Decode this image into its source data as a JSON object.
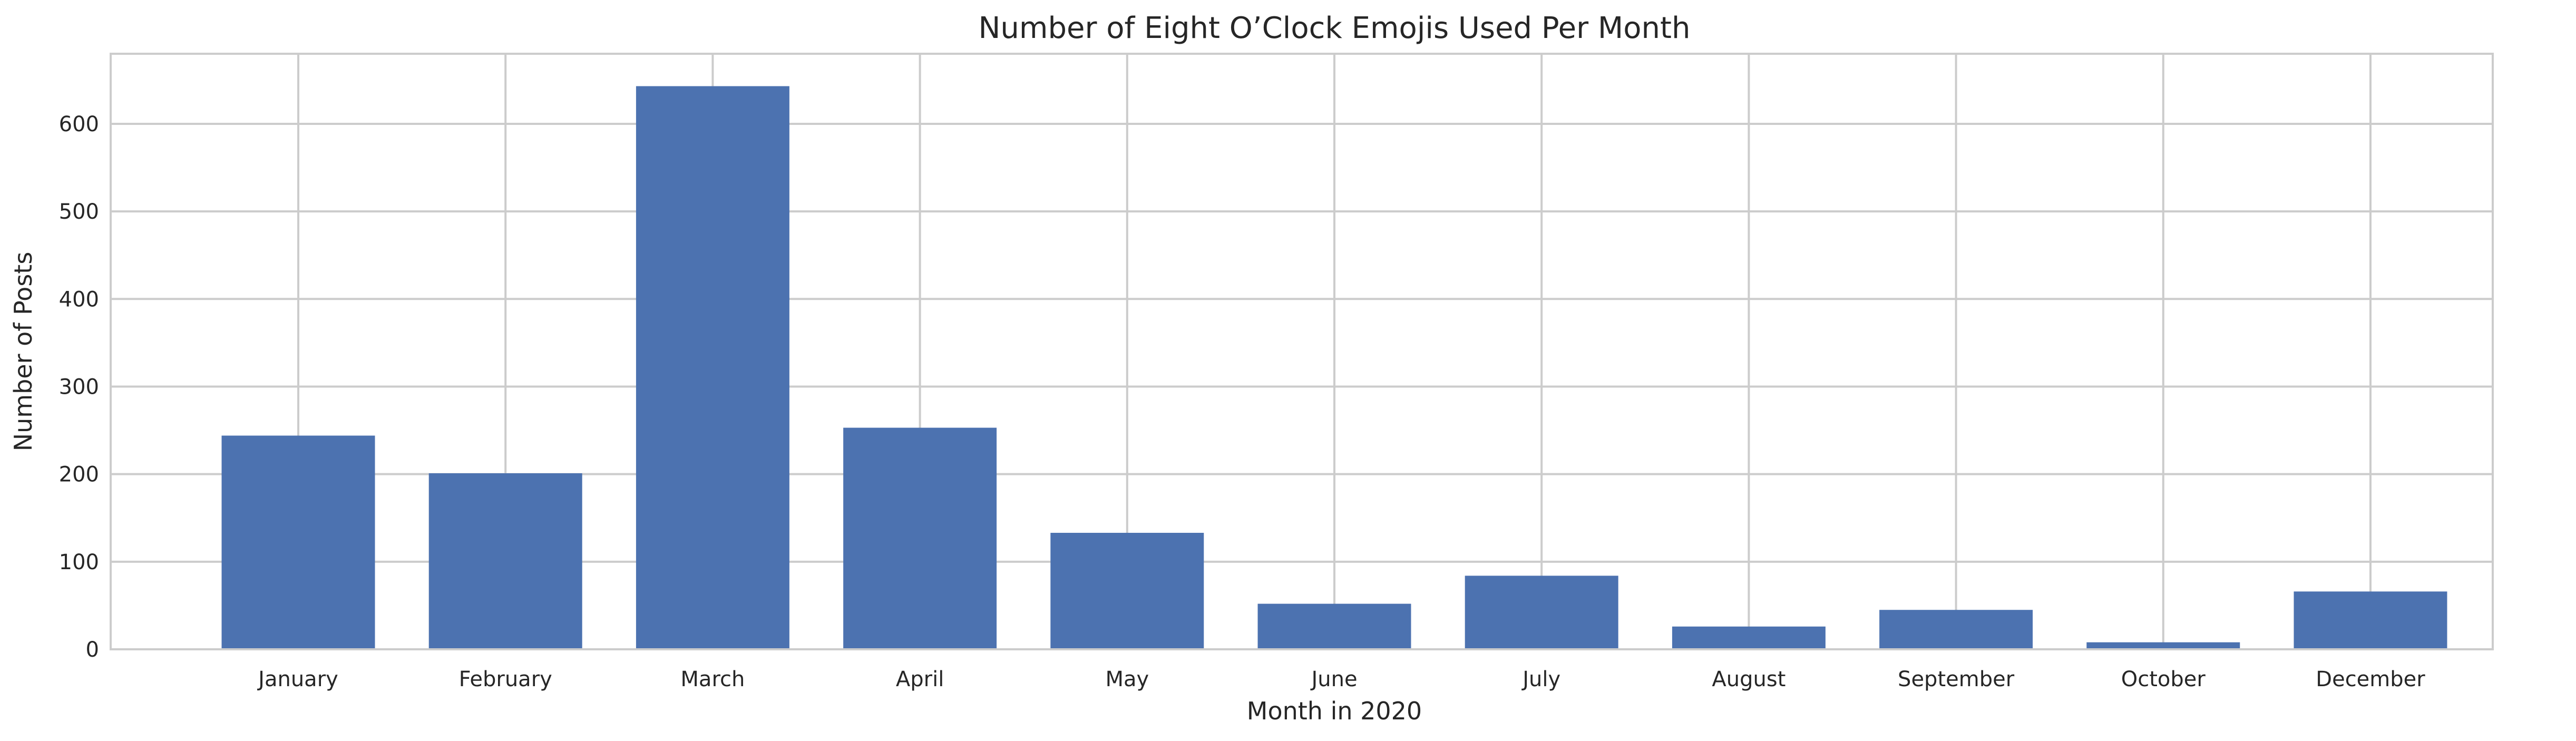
{
  "chart_data": {
    "type": "bar",
    "title": "Number of Eight O’Clock Emojis Used Per Month",
    "xlabel": "Month in 2020",
    "ylabel": "Number of Posts",
    "categories": [
      "January",
      "February",
      "March",
      "April",
      "May",
      "June",
      "July",
      "August",
      "September",
      "October",
      "December"
    ],
    "values": [
      244,
      201,
      643,
      253,
      133,
      52,
      84,
      26,
      45,
      8,
      66
    ],
    "ylim": [
      0,
      680
    ],
    "yticks": [
      0,
      100,
      200,
      300,
      400,
      500,
      600
    ],
    "bar_color": "#4c72b0",
    "grid": true,
    "legend": null
  }
}
